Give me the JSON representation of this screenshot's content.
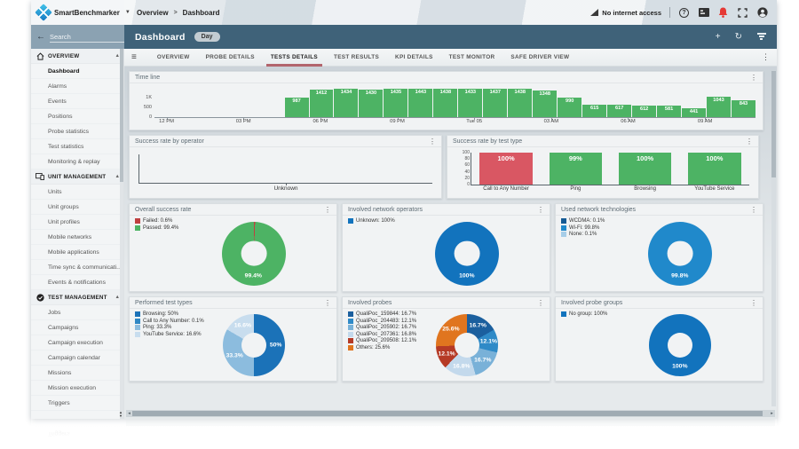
{
  "topbar": {
    "brand": "SmartBenchmarker",
    "breadcrumb": [
      "Overview",
      "Dashboard"
    ],
    "network_status": "No internet access"
  },
  "toolbar": {
    "title": "Dashboard",
    "period_badge": "Day"
  },
  "sidebar": {
    "search_placeholder": "Search",
    "selected_item": "Dashboard",
    "sections": [
      {
        "label": "OVERVIEW",
        "icon": "home",
        "items": [
          "Dashboard",
          "Alarms",
          "Events",
          "Positions",
          "Probe statistics",
          "Test statistics",
          "Monitoring & replay"
        ]
      },
      {
        "label": "UNIT MANAGEMENT",
        "icon": "devices",
        "items": [
          "Units",
          "Unit groups",
          "Unit profiles",
          "Mobile networks",
          "Mobile applications",
          "Time sync & communicati...",
          "Events & notifications"
        ]
      },
      {
        "label": "TEST MANAGEMENT",
        "icon": "check",
        "items": [
          "Jobs",
          "Campaigns",
          "Campaign execution",
          "Campaign calendar",
          "Missions",
          "Mission execution",
          "Triggers"
        ]
      }
    ]
  },
  "tabs": {
    "active": "TESTS DETAILS",
    "items": [
      "OVERVIEW",
      "PROBE DETAILS",
      "TESTS DETAILS",
      "TEST RESULTS",
      "KPI DETAILS",
      "TEST MONITOR",
      "SAFE DRIVER VIEW"
    ]
  },
  "chart_data": [
    {
      "id": "timeline",
      "type": "bar",
      "title": "Time line",
      "values": [
        987,
        1412,
        1434,
        1430,
        1435,
        1443,
        1438,
        1433,
        1437,
        1438,
        1348,
        990,
        615,
        617,
        612,
        581,
        441,
        1043,
        843
      ],
      "bar_color": "#4db364",
      "ylim": [
        0,
        1500
      ],
      "yticks": [
        {
          "label": "0",
          "v": 0
        },
        {
          "label": "500",
          "v": 500
        },
        {
          "label": "1K",
          "v": 1000
        }
      ],
      "xticks": [
        {
          "label": "12 PM",
          "pos": 2
        },
        {
          "label": "03 PM",
          "pos": 14.8
        },
        {
          "label": "06 PM",
          "pos": 27.6
        },
        {
          "label": "09 PM",
          "pos": 40.4
        },
        {
          "label": "Tue 05",
          "pos": 53.2
        },
        {
          "label": "03 AM",
          "pos": 66.0
        },
        {
          "label": "06 AM",
          "pos": 78.8
        },
        {
          "label": "09 AM",
          "pos": 91.6
        }
      ],
      "bars_start_pct": 21.5
    },
    {
      "id": "op",
      "type": "axes-empty",
      "title": "Success rate by operator",
      "categories": [
        "Unknown"
      ]
    },
    {
      "id": "testtype",
      "type": "bar",
      "title": "Success rate by test type",
      "categories": [
        "Call to Any Number",
        "Ping",
        "Browsing",
        "YouTube Service"
      ],
      "values": [
        100,
        99,
        100,
        100
      ],
      "colors": [
        "#d95763",
        "#4db364",
        "#4db364",
        "#4db364"
      ],
      "ylim": [
        0,
        100
      ],
      "yticks": [
        0,
        20,
        40,
        60,
        80,
        100
      ]
    },
    {
      "id": "overall",
      "type": "donut",
      "title": "Overall success rate",
      "slices": [
        {
          "label": "Failed",
          "pct": 0.6,
          "color": "#bf4040"
        },
        {
          "label": "Passed",
          "pct": 99.4,
          "color": "#4db364"
        }
      ]
    },
    {
      "id": "operators",
      "type": "donut",
      "title": "Involved network operators",
      "slices": [
        {
          "label": "Unknown",
          "pct": 100,
          "color": "#1273bd"
        }
      ]
    },
    {
      "id": "technologies",
      "type": "donut",
      "title": "Used network technologies",
      "slices": [
        {
          "label": "WCDMA",
          "pct": 0.1,
          "color": "#155a94"
        },
        {
          "label": "Wi-Fi",
          "pct": 99.8,
          "color": "#2089cb"
        },
        {
          "label": "None",
          "pct": 0.1,
          "color": "#a7cde8"
        }
      ]
    },
    {
      "id": "testtypes-donut",
      "type": "donut",
      "title": "Performed test types",
      "slices": [
        {
          "label": "Browsing",
          "pct": 50,
          "color": "#1b72b8"
        },
        {
          "label": "Call to Any Number",
          "pct": 0.1,
          "color": "#2f87c4"
        },
        {
          "label": "Ping",
          "pct": 33.3,
          "color": "#8cbcde"
        },
        {
          "label": "YouTube Service",
          "pct": 16.6,
          "color": "#c8ddee"
        }
      ]
    },
    {
      "id": "probes",
      "type": "donut",
      "title": "Involved probes",
      "slices": [
        {
          "label": "QualiPoc_159844",
          "pct": 16.7,
          "color": "#1b5f9e"
        },
        {
          "label": "QualiPoc_204483",
          "pct": 12.1,
          "color": "#2f8ac7"
        },
        {
          "label": "QualiPoc_205902",
          "pct": 16.7,
          "color": "#79b1d8"
        },
        {
          "label": "QualiPoc_207361",
          "pct": 16.8,
          "color": "#c3d9ec"
        },
        {
          "label": "QualiPoc_209508",
          "pct": 12.1,
          "color": "#b53a26"
        },
        {
          "label": "Others",
          "pct": 25.6,
          "color": "#e0751f"
        }
      ]
    },
    {
      "id": "probegroups",
      "type": "donut",
      "title": "Involved probe groups",
      "slices": [
        {
          "label": "No group",
          "pct": 100,
          "color": "#1273bd"
        }
      ]
    }
  ]
}
